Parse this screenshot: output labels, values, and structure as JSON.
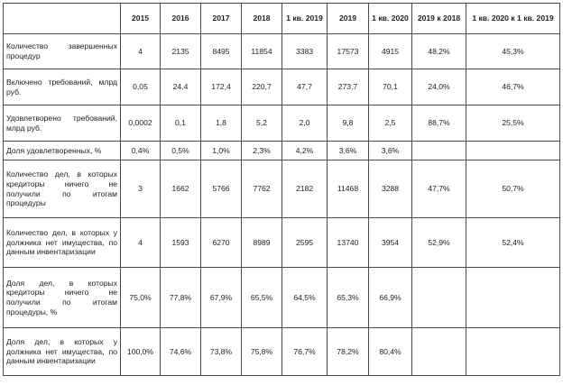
{
  "table": {
    "headers": [
      "",
      "2015",
      "2016",
      "2017",
      "2018",
      "1 кв. 2019",
      "2019",
      "1 кв. 2020",
      "2019 к 2018",
      "1 кв. 2020 к 1 кв. 2019"
    ],
    "rows": [
      {
        "label": "Количество завершенных процедур",
        "cells": [
          "4",
          "2135",
          "8495",
          "11854",
          "3383",
          "17573",
          "4915",
          "48,2%",
          "45,3%"
        ]
      },
      {
        "label": "Включено требований, млрд руб.",
        "cells": [
          "0,05",
          "24,4",
          "172,4",
          "220,7",
          "47,7",
          "273,7",
          "70,1",
          "24,0%",
          "46,7%"
        ]
      },
      {
        "label": "Удовлетворено требований, млрд руб.",
        "cells": [
          "0,0002",
          "0,1",
          "1,8",
          "5,2",
          "2,0",
          "9,8",
          "2,5",
          "88,7%",
          "25,5%"
        ]
      },
      {
        "label": "Доля удовлетворенных, %",
        "cells": [
          "0,4%",
          "0,5%",
          "1,0%",
          "2,3%",
          "4,2%",
          "3,6%",
          "3,6%",
          "",
          ""
        ]
      },
      {
        "label": "Количество дел, в которых кредиторы ничего не получили по итогам процедуры",
        "cells": [
          "3",
          "1662",
          "5766",
          "7762",
          "2182",
          "11468",
          "3288",
          "47,7%",
          "50,7%"
        ]
      },
      {
        "label": "Количество дел, в которых у должника нет имущества, по данным инвентаризации",
        "cells": [
          "4",
          "1593",
          "6270",
          "8989",
          "2595",
          "13740",
          "3954",
          "52,9%",
          "52,4%"
        ]
      },
      {
        "label": "Доля дел, в которых кредиторы ничего не получили по итогам процедуры, %",
        "cells": [
          "75,0%",
          "77,8%",
          "67,9%",
          "65,5%",
          "64,5%",
          "65,3%",
          "66,9%",
          "",
          ""
        ]
      },
      {
        "label": "Доля дел, в которых у должника нет имущества, по данным инвентаризации",
        "cells": [
          "100,0%",
          "74,6%",
          "73,8%",
          "75,8%",
          "76,7%",
          "78,2%",
          "80,4%",
          "",
          ""
        ]
      }
    ]
  }
}
